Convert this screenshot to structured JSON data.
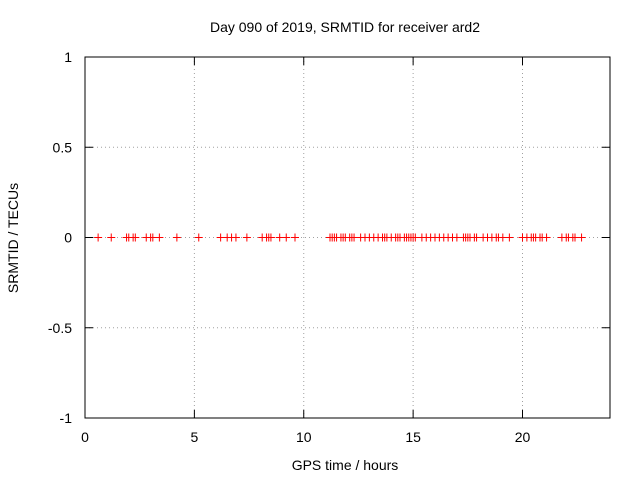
{
  "chart_data": {
    "type": "scatter",
    "title": "Day 090 of 2019, SRMTID for receiver ard2",
    "xlabel": "GPS time / hours",
    "ylabel": "SRMTID / TECUs",
    "xlim": [
      0,
      24
    ],
    "ylim": [
      -1,
      1
    ],
    "xticks": [
      0,
      5,
      10,
      15,
      20
    ],
    "xtick_labels": [
      "0",
      "5",
      "10",
      "15",
      "20"
    ],
    "yticks": [
      -1,
      -0.5,
      0,
      0.5,
      1
    ],
    "ytick_labels": [
      "-1",
      "-0.5",
      "0",
      "0.5",
      "1"
    ],
    "grid": true,
    "marker": "+",
    "marker_color": "#ff0000",
    "series": [
      {
        "name": "SRMTID",
        "x": [
          0.6,
          1.2,
          1.9,
          2.0,
          2.2,
          2.3,
          2.8,
          3.0,
          3.1,
          3.4,
          4.2,
          5.2,
          6.2,
          6.5,
          6.7,
          6.9,
          7.4,
          8.1,
          8.3,
          8.4,
          8.5,
          8.9,
          9.2,
          9.6,
          11.2,
          11.3,
          11.4,
          11.5,
          11.7,
          11.8,
          11.9,
          12.1,
          12.2,
          12.3,
          12.6,
          12.8,
          13.0,
          13.2,
          13.4,
          13.6,
          13.7,
          13.8,
          14.0,
          14.2,
          14.3,
          14.4,
          14.6,
          14.7,
          14.8,
          14.9,
          15.0,
          15.1,
          15.4,
          15.6,
          15.8,
          16.0,
          16.2,
          16.4,
          16.6,
          16.8,
          17.0,
          17.3,
          17.4,
          17.5,
          17.6,
          17.8,
          17.9,
          18.2,
          18.4,
          18.6,
          18.8,
          18.9,
          19.1,
          19.4,
          20.0,
          20.2,
          20.4,
          20.5,
          20.6,
          20.8,
          20.9,
          21.1,
          21.8,
          22.0,
          22.1,
          22.3,
          22.4,
          22.7
        ],
        "y": [
          0,
          0,
          0,
          0,
          0,
          0,
          0,
          0,
          0,
          0,
          0,
          0,
          0,
          0,
          0,
          0,
          0,
          0,
          0,
          0,
          0,
          0,
          0,
          0,
          0,
          0,
          0,
          0,
          0,
          0,
          0,
          0,
          0,
          0,
          0,
          0,
          0,
          0,
          0,
          0,
          0,
          0,
          0,
          0,
          0,
          0,
          0,
          0,
          0,
          0,
          0,
          0,
          0,
          0,
          0,
          0,
          0,
          0,
          0,
          0,
          0,
          0,
          0,
          0,
          0,
          0,
          0,
          0,
          0,
          0,
          0,
          0,
          0,
          0,
          0,
          0,
          0,
          0,
          0,
          0,
          0,
          0,
          0,
          0,
          0,
          0,
          0,
          0
        ]
      }
    ]
  }
}
